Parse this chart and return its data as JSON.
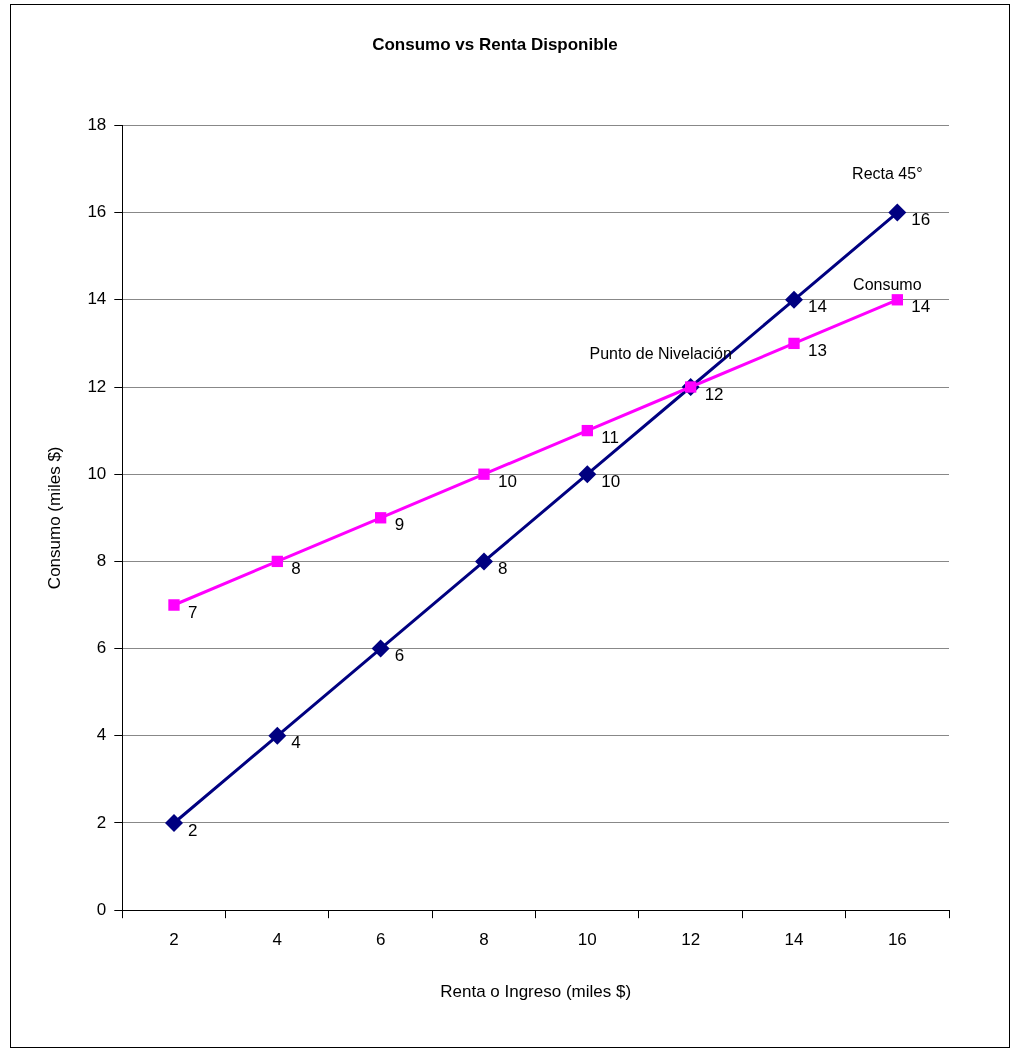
{
  "chart_data": {
    "type": "line",
    "title": "Consumo vs Renta Disponible",
    "xlabel": "Renta o Ingreso (miles $)",
    "ylabel": "Consumo (miles $)",
    "categories": [
      "2",
      "4",
      "6",
      "8",
      "10",
      "12",
      "14",
      "16"
    ],
    "series": [
      {
        "name": "Recta 45°",
        "color": "#000080",
        "marker": "diamond",
        "values": [
          2,
          4,
          6,
          8,
          10,
          12,
          14,
          16
        ],
        "value_labels": [
          "2",
          "4",
          "6",
          "8",
          "10",
          "12",
          "14",
          "16"
        ]
      },
      {
        "name": "Consumo",
        "color": "#ff00ff",
        "marker": "square",
        "values": [
          7,
          8,
          9,
          10,
          11,
          12,
          13,
          14
        ],
        "value_labels": [
          "7",
          "8",
          "9",
          "10",
          "11",
          null,
          "13",
          "14"
        ]
      }
    ],
    "ylim": [
      0,
      18
    ],
    "yticks": [
      0,
      2,
      4,
      6,
      8,
      10,
      12,
      14,
      16,
      18
    ],
    "grid": "y",
    "legend": false,
    "annotations": [
      {
        "text": "Punto de Nivelación",
        "x": "12",
        "y": 12
      }
    ]
  }
}
